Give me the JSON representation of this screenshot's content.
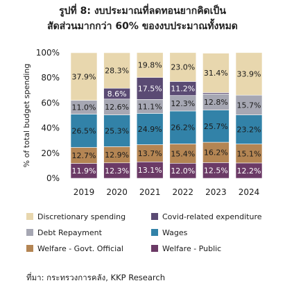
{
  "title_line1": "รูปที่ 8: งบประมาณที่ลดทอนยากคิดเป็น",
  "title_line2": "สัดส่วนมากกว่า 60% ของงบประมาณทั้งหมด",
  "source": "ที่มา: กระทรวงการคลัง, KKP Research",
  "chart_data": {
    "type": "bar",
    "stacked": true,
    "categories": [
      "2019",
      "2020",
      "2021",
      "2022",
      "2023",
      "2024"
    ],
    "ylabel": "% of total budget spending",
    "ylim": [
      0,
      100
    ],
    "yticks": [
      "0%",
      "20%",
      "40%",
      "60%",
      "80%",
      "100%"
    ],
    "legend_position": "bottom",
    "series": [
      {
        "name": "Welfare - Public",
        "color": "#6b3a66",
        "values": [
          11.9,
          12.3,
          13.1,
          12.0,
          12.5,
          12.2
        ],
        "labels": [
          "11.9%",
          "12.3%",
          "13.1%",
          "12.0%",
          "12.5%",
          "12.2%"
        ],
        "label_color": "#ffffff"
      },
      {
        "name": "Welfare - Govt. Official",
        "color": "#b48553",
        "values": [
          12.7,
          12.9,
          13.7,
          15.4,
          16.2,
          15.1
        ],
        "labels": [
          "12.7%",
          "12.9%",
          "13.7%",
          "15.4%",
          "16.2%",
          "15.1%"
        ],
        "label_color": "#1a1a1a"
      },
      {
        "name": "Wages",
        "color": "#3282a8",
        "values": [
          26.5,
          25.3,
          24.9,
          26.2,
          25.7,
          23.2
        ],
        "labels": [
          "26.5%",
          "25.3%",
          "24.9%",
          "26.2%",
          "25.7%",
          "23.2%"
        ],
        "label_color": "#1a1a1a"
      },
      {
        "name": "Debt Repayment",
        "color": "#a6a7b3",
        "values": [
          11.0,
          12.6,
          11.1,
          12.3,
          12.8,
          15.7
        ],
        "labels": [
          "11.0%",
          "12.6%",
          "11.1%",
          "12.3%",
          "12.8%",
          "15.7%"
        ],
        "label_color": "#1a1a1a"
      },
      {
        "name": "Covid-related expenditure",
        "color": "#5a4a73",
        "values": [
          0,
          8.6,
          17.5,
          11.2,
          1.0,
          0
        ],
        "labels": [
          "",
          "8.6%",
          "17.5%",
          "11.2%",
          "",
          ""
        ],
        "label_color": "#ffffff"
      },
      {
        "name": "Discretionary spending",
        "color": "#e8d7ae",
        "values": [
          37.9,
          28.3,
          19.8,
          23.0,
          31.4,
          33.9
        ],
        "labels": [
          "37.9%",
          "28.3%",
          "19.8%",
          "23.0%",
          "31.4%",
          "33.9%"
        ],
        "label_color": "#1a1a1a"
      }
    ],
    "legend": [
      [
        "Discretionary spending",
        "Covid-related expenditure"
      ],
      [
        "Debt Repayment",
        "Wages"
      ],
      [
        "Welfare - Govt. Official",
        "Welfare - Public"
      ]
    ]
  }
}
